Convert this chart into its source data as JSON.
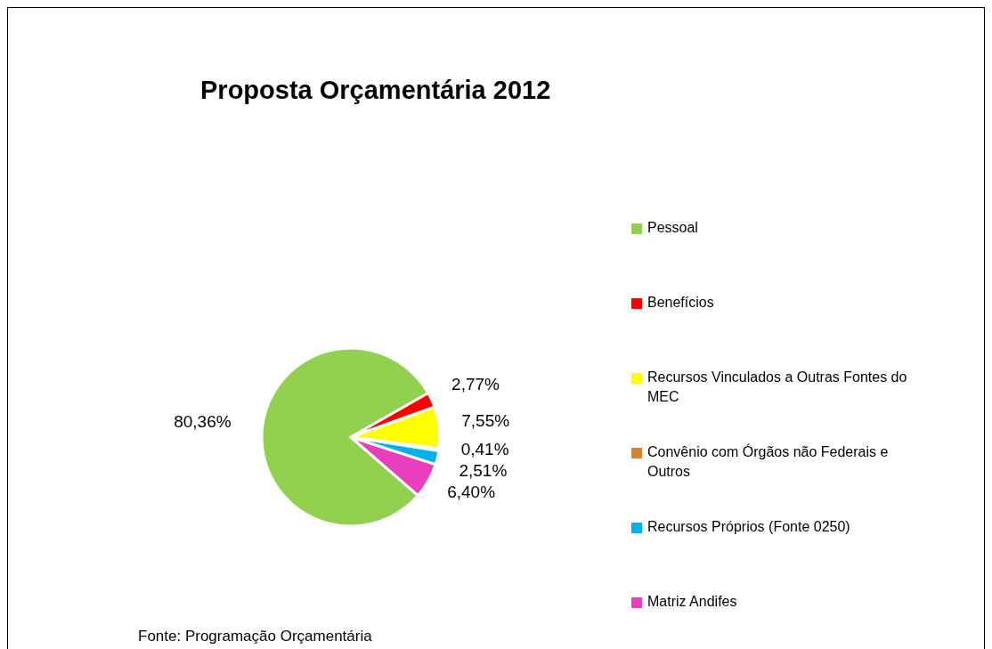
{
  "chart_data": {
    "type": "pie",
    "title": "Proposta Orçamentária 2012",
    "categories": [
      "Pessoal",
      "Benefícios",
      "Recursos Vinculados a Outras Fontes do MEC",
      "Convênio com Órgãos não Federais e Outros",
      "Recursos Próprios (Fonte 0250)",
      "Matriz Andifes"
    ],
    "values": [
      80.36,
      2.77,
      7.55,
      0.41,
      2.51,
      6.4
    ],
    "colors": [
      "#92d050",
      "#ff0000",
      "#ffff00",
      "#d9822b",
      "#00b0f0",
      "#e83fbf"
    ],
    "value_labels": [
      "80,36%",
      "2,77%",
      "7,55%",
      "0,41%",
      "2,51%",
      "6,40%"
    ],
    "legend": "right",
    "annotations": [
      "Fonte: Programação Orçamentária"
    ]
  }
}
